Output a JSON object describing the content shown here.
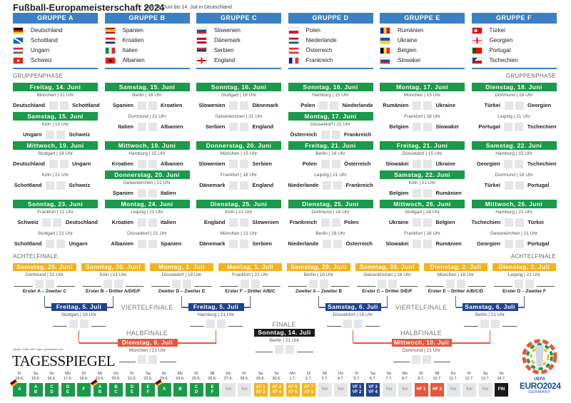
{
  "header": {
    "title": "Fußball-Europameisterschaft 2024",
    "subtitle": "vom 14. Juni bis 14. Juli in Deutschland"
  },
  "colors": {
    "group_header": "#3a80c3",
    "group_stage": "#1a9a4a",
    "round_of_16": "#f5b31c",
    "quarter": "#22428f",
    "semi": "#e8553a",
    "final": "#1a1a1a"
  },
  "groups": [
    {
      "name": "GRUPPE A",
      "teams": [
        {
          "name": "Deutschland",
          "flag": "de"
        },
        {
          "name": "Schottland",
          "flag": "sco"
        },
        {
          "name": "Ungarn",
          "flag": "hu"
        },
        {
          "name": "Schweiz",
          "flag": "ch"
        }
      ]
    },
    {
      "name": "GRUPPE B",
      "teams": [
        {
          "name": "Spanien",
          "flag": "es"
        },
        {
          "name": "Kroatien",
          "flag": "hr"
        },
        {
          "name": "Italien",
          "flag": "it"
        },
        {
          "name": "Albanien",
          "flag": "al"
        }
      ]
    },
    {
      "name": "GRUPPE C",
      "teams": [
        {
          "name": "Slowenien",
          "flag": "si"
        },
        {
          "name": "Dänemark",
          "flag": "dk"
        },
        {
          "name": "Serbien",
          "flag": "rs"
        },
        {
          "name": "England",
          "flag": "eng"
        }
      ]
    },
    {
      "name": "GRUPPE D",
      "teams": [
        {
          "name": "Polen",
          "flag": "pl"
        },
        {
          "name": "Niederlande",
          "flag": "nl"
        },
        {
          "name": "Österreich",
          "flag": "at"
        },
        {
          "name": "Frankreich",
          "flag": "fr"
        }
      ]
    },
    {
      "name": "GRUPPE E",
      "teams": [
        {
          "name": "Rumänien",
          "flag": "ro"
        },
        {
          "name": "Ukraine",
          "flag": "ua"
        },
        {
          "name": "Belgien",
          "flag": "be"
        },
        {
          "name": "Slowakei",
          "flag": "sk"
        }
      ]
    },
    {
      "name": "GRUPPE F",
      "teams": [
        {
          "name": "Türkei",
          "flag": "tr"
        },
        {
          "name": "Georgien",
          "flag": "ge"
        },
        {
          "name": "Portugal",
          "flag": "pt"
        },
        {
          "name": "Tschechien",
          "flag": "cz"
        }
      ]
    }
  ],
  "labels": {
    "group_phase": "GRUPPENPHASE",
    "round_of_16": "ACHTELFINALE",
    "quarter": "VIERTELFINALE",
    "semi": "HALBFINALE",
    "final": "FINALE"
  },
  "group_matches": [
    [
      [
        {
          "date": "Freitag, 14. Juni",
          "venue": "München | 21 Uhr",
          "home": "Deutschland",
          "away": "Schottland"
        },
        {
          "date": "Samstag, 15. Juni",
          "venue": "Köln | 15 Uhr",
          "home": "Ungarn",
          "away": "Schweiz"
        }
      ],
      [
        {
          "date": "Mittwoch, 19. Juni",
          "venue": "Stuttgart | 18 Uhr",
          "home": "Deutschland",
          "away": "Ungarn"
        },
        {
          "date": "",
          "venue": "Köln | 21 Uhr",
          "home": "Schottland",
          "away": "Schweiz"
        }
      ],
      [
        {
          "date": "Sonntag, 23. Juni",
          "venue": "Frankfurt | 21 Uhr",
          "home": "Schweiz",
          "away": "Deutschland"
        },
        {
          "date": "",
          "venue": "Stuttgart | 21 Uhr",
          "home": "Schottland",
          "away": "Ungarn"
        }
      ]
    ],
    [
      [
        {
          "date": "Samstag, 15. Juni",
          "venue": "Berlin | 18 Uhr",
          "home": "Spanien",
          "away": "Kroatien"
        },
        {
          "date": "",
          "venue": "Dortmund | 21 Uhr",
          "home": "Italien",
          "away": "Albanien"
        }
      ],
      [
        {
          "date": "Mittwoch, 19. Juni",
          "venue": "Hamburg | 15 Uhr",
          "home": "Kroatien",
          "away": "Albanien"
        },
        {
          "date": "Donnerstag, 20. Juni",
          "venue": "Gelsenkirchen | 21 Uhr",
          "home": "Spanien",
          "away": "Italien"
        }
      ],
      [
        {
          "date": "Montag, 24. Juni",
          "venue": "Leipzig | 21 Uhr",
          "home": "Kroatien",
          "away": "Italien"
        },
        {
          "date": "",
          "venue": "Düsseldorf | 21 Uhr",
          "home": "Albanien",
          "away": "Spanien"
        }
      ]
    ],
    [
      [
        {
          "date": "Sonntag, 16. Juni",
          "venue": "Stuttgart | 18 Uhr",
          "home": "Slowenien",
          "away": "Dänemark"
        },
        {
          "date": "",
          "venue": "Gelsenkirchen | 21 Uhr",
          "home": "Serbien",
          "away": "England"
        }
      ],
      [
        {
          "date": "Donnerstag, 20. Juni",
          "venue": "München | 15 Uhr",
          "home": "Slowenien",
          "away": "Serbien"
        },
        {
          "date": "",
          "venue": "Frankfurt | 18 Uhr",
          "home": "Dänemark",
          "away": "England"
        }
      ],
      [
        {
          "date": "Dienstag, 25. Juni",
          "venue": "Köln | 21 Uhr",
          "home": "England",
          "away": "Slowenien"
        },
        {
          "date": "",
          "venue": "München | 21 Uhr",
          "home": "Dänemark",
          "away": "Serbien"
        }
      ]
    ],
    [
      [
        {
          "date": "Sonntag, 16. Juni",
          "venue": "Hamburg | 15 Uhr",
          "home": "Polen",
          "away": "Niederlande"
        },
        {
          "date": "Montag, 17. Juni",
          "venue": "Düsseldorf | 21 Uhr",
          "home": "Österreich",
          "away": "Frankreich"
        }
      ],
      [
        {
          "date": "Freitag, 21. Juni",
          "venue": "Berlin | 18 Uhr",
          "home": "Polen",
          "away": "Österreich"
        },
        {
          "date": "",
          "venue": "Leipzig | 21 Uhr",
          "home": "Niederlande",
          "away": "Frankreich"
        }
      ],
      [
        {
          "date": "Dienstag, 25. Juni",
          "venue": "Dortmund | 18 Uhr",
          "home": "Frankreich",
          "away": "Polen"
        },
        {
          "date": "",
          "venue": "Berlin | 18 Uhr",
          "home": "Niederlande",
          "away": "Österreich"
        }
      ]
    ],
    [
      [
        {
          "date": "Montag, 17. Juni",
          "venue": "München | 15 Uhr",
          "home": "Rumänien",
          "away": "Ukraine"
        },
        {
          "date": "",
          "venue": "Frankfurt | 18 Uhr",
          "home": "Belgien",
          "away": "Slowakei"
        }
      ],
      [
        {
          "date": "Freitag, 21. Juni",
          "venue": "Düsseldorf | 15 Uhr",
          "home": "Slowakei",
          "away": "Ukraine"
        },
        {
          "date": "Samstag, 22. Juni",
          "venue": "Köln | 21 Uhr",
          "home": "Belgien",
          "away": "Rumänien"
        }
      ],
      [
        {
          "date": "Mittwoch, 26. Juni",
          "venue": "Stuttgart | 18 Uhr",
          "home": "Ukraine",
          "away": "Belgien"
        },
        {
          "date": "",
          "venue": "Frankfurt | 18 Uhr",
          "home": "Slowakei",
          "away": "Rumänien"
        }
      ]
    ],
    [
      [
        {
          "date": "Dienstag, 18. Juni",
          "venue": "Dortmund | 18 Uhr",
          "home": "Türkei",
          "away": "Georgien"
        },
        {
          "date": "",
          "venue": "Leipzig | 21 Uhr",
          "home": "Portugal",
          "away": "Tschechien"
        }
      ],
      [
        {
          "date": "Samstag, 22. Juni",
          "venue": "Hamburg | 15 Uhr",
          "home": "Georgien",
          "away": "Tschechien"
        },
        {
          "date": "",
          "venue": "Dortmund | 18 Uhr",
          "home": "Türkei",
          "away": "Portugal"
        }
      ],
      [
        {
          "date": "Mittwoch, 26. Juni",
          "venue": "Hamburg | 21 Uhr",
          "home": "Tschechien",
          "away": "Türkei"
        },
        {
          "date": "",
          "venue": "Gelsenkirchen | 21 Uhr",
          "home": "Georgien",
          "away": "Portugal"
        }
      ]
    ]
  ],
  "round_of_16": [
    {
      "date": "Samstag, 29. Juni",
      "venue": "Dortmund | 21 Uhr",
      "pairing": "Erster A – Zweiter C"
    },
    {
      "date": "Sonntag, 30. Juni",
      "venue": "Köln | 21 Uhr",
      "pairing": "Erster B – Dritter A/D/E/F"
    },
    {
      "date": "Montag, 1. Juli",
      "venue": "Düsseldorf | 18 Uhr",
      "pairing": "Zweiter D – Zweiter E"
    },
    {
      "date": "Montag, 1. Juli",
      "venue": "Frankfurt | 21 Uhr",
      "pairing": "Erster F – Dritter A/B/C"
    },
    {
      "date": "Samstag, 29. Juni",
      "venue": "Berlin | 18 Uhr",
      "pairing": "Zweiter A – Zweiter B"
    },
    {
      "date": "Sonntag, 30. Juni",
      "venue": "Gelsenkirchen | 18 Uhr",
      "pairing": "Erster C – Dritter D/E/F"
    },
    {
      "date": "Dienstag, 2. Juli",
      "venue": "München | 18 Uhr",
      "pairing": "Erster E – Dritter A/B/C/D"
    },
    {
      "date": "Dienstag, 2. Juli",
      "venue": "Leipzig | 21 Uhr",
      "pairing": "Erster D – Zweiter F"
    }
  ],
  "quarter_finals": [
    {
      "date": "Freitag, 5. Juli",
      "venue": "Stuttgart | 18 Uhr"
    },
    {
      "date": "Freitag, 5. Juli",
      "venue": "Hamburg | 21 Uhr"
    },
    {
      "date": "Samstag, 6. Juli",
      "venue": "Düsseldorf | 18 Uhr"
    },
    {
      "date": "Samstag, 6. Juli",
      "venue": "Berlin | 21 Uhr"
    }
  ],
  "semi_finals": [
    {
      "date": "Dienstag, 9. Juli",
      "venue": "München | 21 Uhr"
    },
    {
      "date": "Mittwoch, 10. Juli",
      "venue": "Dortmund | 21 Uhr"
    }
  ],
  "final": {
    "date": "Sonntag, 14. Juli",
    "venue": "Berlin | 21 Uhr"
  },
  "footer": {
    "source": "Quelle: Uefa, AFP, dpa • präsentiert von",
    "publisher_logo": "TAGESSPIEGEL",
    "event_logo": {
      "uefa": "UEFA",
      "name": "EURO2024",
      "country": "GERMANY"
    }
  },
  "calendar": [
    {
      "day": "Fr",
      "date": "14.6.",
      "lines": [
        "A"
      ],
      "type": "g",
      "germany": true
    },
    {
      "day": "Sa",
      "date": "15.6.",
      "lines": [
        "A",
        "B"
      ],
      "type": "g"
    },
    {
      "day": "So",
      "date": "16.6.",
      "lines": [
        "C",
        "D"
      ],
      "type": "g"
    },
    {
      "day": "Mo",
      "date": "17.6.",
      "lines": [
        "D",
        "E"
      ],
      "type": "g"
    },
    {
      "day": "Di",
      "date": "18.6.",
      "lines": [
        "F"
      ],
      "type": "g"
    },
    {
      "day": "Mi",
      "date": "19.6.",
      "lines": [
        "A",
        "B"
      ],
      "type": "g",
      "germany": true
    },
    {
      "day": "Do",
      "date": "20.6.",
      "lines": [
        "B",
        "C"
      ],
      "type": "g"
    },
    {
      "day": "Fr",
      "date": "21.6.",
      "lines": [
        "D",
        "E"
      ],
      "type": "g"
    },
    {
      "day": "Sa",
      "date": "22.6.",
      "lines": [
        "E",
        "F"
      ],
      "type": "g"
    },
    {
      "day": "So",
      "date": "23.6.",
      "lines": [
        "A"
      ],
      "type": "g",
      "germany": true
    },
    {
      "day": "Mo",
      "date": "24.6.",
      "lines": [
        "B"
      ],
      "type": "g"
    },
    {
      "day": "Di",
      "date": "25.6.",
      "lines": [
        "C",
        "D"
      ],
      "type": "g"
    },
    {
      "day": "Mi",
      "date": "26.6.",
      "lines": [
        "E",
        "F"
      ],
      "type": "g"
    },
    {
      "day": "Do",
      "date": "27.6.",
      "lines": [
        "frei"
      ],
      "type": "frei"
    },
    {
      "day": "Fr",
      "date": "28.6.",
      "lines": [
        "frei"
      ],
      "type": "frei"
    },
    {
      "day": "Sa",
      "date": "29.6.",
      "lines": [
        "AF 1",
        "AF 2"
      ],
      "type": "y"
    },
    {
      "day": "So",
      "date": "30.6.",
      "lines": [
        "AF 3",
        "AF 4"
      ],
      "type": "y"
    },
    {
      "day": "Mo",
      "date": "1.7.",
      "lines": [
        "AF 5",
        "AF 6"
      ],
      "type": "y"
    },
    {
      "day": "Di",
      "date": "2.7.",
      "lines": [
        "AF 7",
        "AF 8"
      ],
      "type": "y"
    },
    {
      "day": "Mi",
      "date": "3.7.",
      "lines": [
        "frei"
      ],
      "type": "frei"
    },
    {
      "day": "Do",
      "date": "4.7.",
      "lines": [
        "frei"
      ],
      "type": "frei"
    },
    {
      "day": "Fr",
      "date": "5.7.",
      "lines": [
        "VF 1",
        "VF 2"
      ],
      "type": "n"
    },
    {
      "day": "Sa",
      "date": "6.7.",
      "lines": [
        "VF 3",
        "VF 4"
      ],
      "type": "n"
    },
    {
      "day": "So",
      "date": "7.7.",
      "lines": [
        "frei"
      ],
      "type": "frei"
    },
    {
      "day": "Mo",
      "date": "8.7.",
      "lines": [
        "frei"
      ],
      "type": "frei"
    },
    {
      "day": "Di",
      "date": "9.7.",
      "lines": [
        "HF 1"
      ],
      "type": "r"
    },
    {
      "day": "Mi",
      "date": "10.7.",
      "lines": [
        "HF 2"
      ],
      "type": "r"
    },
    {
      "day": "Do",
      "date": "11.7.",
      "lines": [
        "frei"
      ],
      "type": "frei"
    },
    {
      "day": "Fr",
      "date": "12.7.",
      "lines": [
        "frei"
      ],
      "type": "frei"
    },
    {
      "day": "Sa",
      "date": "13.7.",
      "lines": [
        "frei"
      ],
      "type": "frei"
    },
    {
      "day": "So",
      "date": "14.7.",
      "lines": [
        "FIN"
      ],
      "type": "k"
    }
  ]
}
